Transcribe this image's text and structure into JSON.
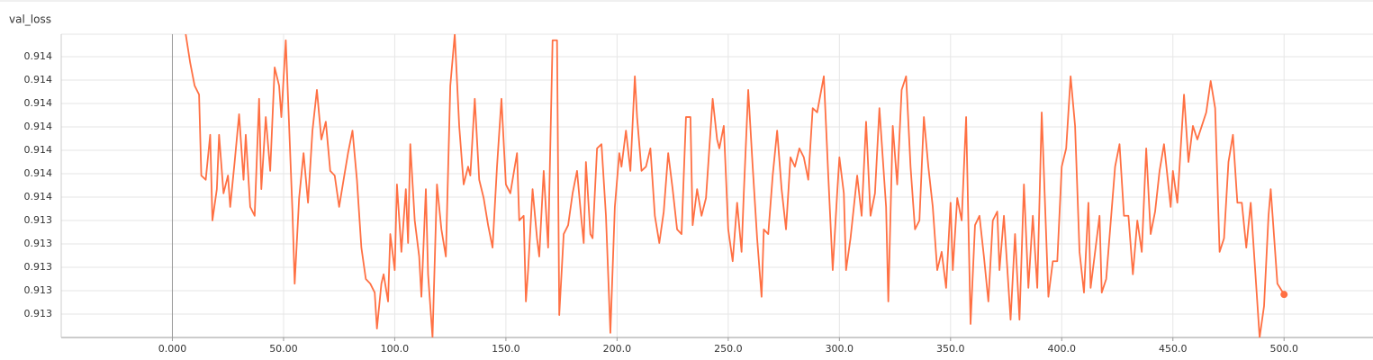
{
  "chart_data": {
    "type": "line",
    "title": "val_loss",
    "color": "#ff7043",
    "grid": true,
    "xlim": [
      -50,
      540
    ],
    "ylim": [
      0.9132,
      0.913848
    ],
    "xticks": [
      {
        "value": 0,
        "label": "0.000"
      },
      {
        "value": 50,
        "label": "50.00"
      },
      {
        "value": 100,
        "label": "100.0"
      },
      {
        "value": 150,
        "label": "150.0"
      },
      {
        "value": 200,
        "label": "200.0"
      },
      {
        "value": 250,
        "label": "250.0"
      },
      {
        "value": 300,
        "label": "300.0"
      },
      {
        "value": 350,
        "label": "350.0"
      },
      {
        "value": 400,
        "label": "400.0"
      },
      {
        "value": 450,
        "label": "450.0"
      },
      {
        "value": 500,
        "label": "500.0"
      }
    ],
    "yticks": [
      {
        "value": 0.91325,
        "label": "0.913"
      },
      {
        "value": 0.9133,
        "label": "0.913"
      },
      {
        "value": 0.91335,
        "label": "0.913"
      },
      {
        "value": 0.9134,
        "label": "0.913"
      },
      {
        "value": 0.91345,
        "label": "0.913"
      },
      {
        "value": 0.9135,
        "label": "0.914"
      },
      {
        "value": 0.91355,
        "label": "0.914"
      },
      {
        "value": 0.9136,
        "label": "0.914"
      },
      {
        "value": 0.91365,
        "label": "0.914"
      },
      {
        "value": 0.9137,
        "label": "0.914"
      },
      {
        "value": 0.91375,
        "label": "0.914"
      },
      {
        "value": 0.9138,
        "label": "0.914"
      }
    ],
    "x": [
      6,
      8,
      10,
      12,
      13,
      15,
      17,
      18,
      20,
      21,
      23,
      25,
      26,
      28,
      30,
      32,
      33,
      35,
      37,
      39,
      40,
      42,
      44,
      46,
      48,
      49,
      51,
      54,
      55,
      57,
      59,
      61,
      63,
      65,
      67,
      69,
      71,
      73,
      75,
      77,
      79,
      81,
      83,
      85,
      87,
      89,
      91,
      92,
      94,
      95,
      97,
      98,
      100,
      101,
      103,
      105,
      106,
      107,
      109,
      111,
      112,
      114,
      115,
      117,
      119,
      121,
      123,
      125,
      127,
      129,
      131,
      133,
      134,
      136,
      138,
      140,
      142,
      144,
      146,
      148,
      150,
      152,
      155,
      156,
      158,
      159,
      160,
      162,
      164,
      165,
      167,
      169,
      171,
      173,
      174,
      176,
      178,
      180,
      182,
      184,
      185,
      186,
      188,
      189,
      191,
      193,
      195,
      197,
      199,
      201,
      202,
      204,
      206,
      208,
      209,
      211,
      213,
      215,
      217,
      219,
      221,
      223,
      225,
      227,
      229,
      231,
      233,
      234,
      236,
      238,
      240,
      243,
      245,
      246,
      248,
      250,
      252,
      254,
      256,
      257,
      259,
      261,
      263,
      265,
      266,
      268,
      270,
      272,
      274,
      276,
      278,
      280,
      282,
      284,
      286,
      288,
      290,
      293,
      295,
      297,
      299,
      300,
      302,
      303,
      305,
      308,
      310,
      312,
      314,
      316,
      318,
      321,
      322,
      324,
      326,
      328,
      330,
      332,
      334,
      336,
      338,
      340,
      342,
      344,
      346,
      348,
      350,
      351,
      353,
      355,
      357,
      359,
      361,
      363,
      365,
      367,
      369,
      371,
      372,
      374,
      377,
      379,
      381,
      383,
      385,
      387,
      389,
      391,
      394,
      396,
      398,
      400,
      402,
      404,
      406,
      408,
      410,
      412,
      413,
      416,
      417,
      418,
      420,
      424,
      426,
      428,
      430,
      432,
      434,
      436,
      438,
      440,
      442,
      444,
      446,
      449,
      450,
      452,
      455,
      457,
      459,
      461,
      463,
      465,
      467,
      469,
      471,
      473,
      475,
      477,
      479,
      481,
      483,
      485,
      487,
      489,
      491,
      493,
      494,
      497,
      500
    ],
    "values": [
      0.913848,
      0.913787,
      0.913738,
      0.913719,
      0.913546,
      0.913537,
      0.913633,
      0.91345,
      0.913517,
      0.913633,
      0.913508,
      0.913546,
      0.913479,
      0.913575,
      0.913677,
      0.913537,
      0.913633,
      0.913479,
      0.91346,
      0.91371,
      0.913517,
      0.913671,
      0.913556,
      0.913777,
      0.913738,
      0.913671,
      0.913835,
      0.913469,
      0.913315,
      0.913498,
      0.913594,
      0.913488,
      0.913642,
      0.913729,
      0.913623,
      0.913661,
      0.913556,
      0.913546,
      0.913479,
      0.913537,
      0.913594,
      0.913642,
      0.913537,
      0.913392,
      0.913325,
      0.913315,
      0.913296,
      0.913219,
      0.913315,
      0.913335,
      0.913277,
      0.913421,
      0.913344,
      0.913527,
      0.913383,
      0.913517,
      0.913402,
      0.913613,
      0.91345,
      0.913373,
      0.913287,
      0.913517,
      0.913335,
      0.9132,
      0.913527,
      0.913431,
      0.913373,
      0.913738,
      0.913848,
      0.913652,
      0.913527,
      0.913565,
      0.913546,
      0.91371,
      0.913537,
      0.913498,
      0.91344,
      0.913392,
      0.913565,
      0.91371,
      0.913527,
      0.913508,
      0.913594,
      0.91345,
      0.91346,
      0.913277,
      0.913344,
      0.913517,
      0.913412,
      0.913373,
      0.913556,
      0.913392,
      0.913835,
      0.913835,
      0.913248,
      0.913421,
      0.91344,
      0.913508,
      0.913556,
      0.91345,
      0.913402,
      0.913575,
      0.913421,
      0.913412,
      0.913604,
      0.913613,
      0.91346,
      0.91321,
      0.913479,
      0.913594,
      0.913565,
      0.913642,
      0.913556,
      0.913758,
      0.913671,
      0.913556,
      0.913565,
      0.913604,
      0.91346,
      0.913402,
      0.913469,
      0.913594,
      0.913517,
      0.913431,
      0.913421,
      0.913671,
      0.913671,
      0.91344,
      0.913517,
      0.91346,
      0.913498,
      0.91371,
      0.913623,
      0.913604,
      0.913652,
      0.913431,
      0.913363,
      0.913488,
      0.913383,
      0.913508,
      0.913729,
      0.913565,
      0.913412,
      0.913287,
      0.913431,
      0.913421,
      0.913546,
      0.913642,
      0.913517,
      0.913431,
      0.913585,
      0.913565,
      0.913604,
      0.913585,
      0.913537,
      0.91369,
      0.913681,
      0.913758,
      0.913546,
      0.913344,
      0.913508,
      0.913585,
      0.913508,
      0.913344,
      0.913412,
      0.913546,
      0.91346,
      0.913661,
      0.91346,
      0.913508,
      0.91369,
      0.913479,
      0.913277,
      0.913652,
      0.913527,
      0.913729,
      0.913758,
      0.913565,
      0.913431,
      0.91345,
      0.913671,
      0.913565,
      0.913479,
      0.913344,
      0.913383,
      0.913306,
      0.913488,
      0.913344,
      0.913498,
      0.91345,
      0.913671,
      0.913229,
      0.91344,
      0.91346,
      0.913373,
      0.913277,
      0.91345,
      0.913469,
      0.913344,
      0.91346,
      0.913238,
      0.913421,
      0.913238,
      0.913527,
      0.913306,
      0.91346,
      0.913306,
      0.913681,
      0.913287,
      0.913363,
      0.913363,
      0.913565,
      0.913604,
      0.913758,
      0.913652,
      0.913383,
      0.913296,
      0.913488,
      0.913306,
      0.913421,
      0.91346,
      0.913296,
      0.913325,
      0.913565,
      0.913613,
      0.91346,
      0.91346,
      0.913335,
      0.91345,
      0.913383,
      0.913604,
      0.913421,
      0.913469,
      0.913556,
      0.913613,
      0.913479,
      0.913556,
      0.913488,
      0.913719,
      0.913575,
      0.913652,
      0.913623,
      0.913652,
      0.913681,
      0.913748,
      0.91369,
      0.913383,
      0.913412,
      0.913575,
      0.913633,
      0.913488,
      0.913488,
      0.913392,
      0.913488,
      0.913344,
      0.9132,
      0.913267,
      0.91346,
      0.913517,
      0.913315,
      0.913292
    ]
  }
}
